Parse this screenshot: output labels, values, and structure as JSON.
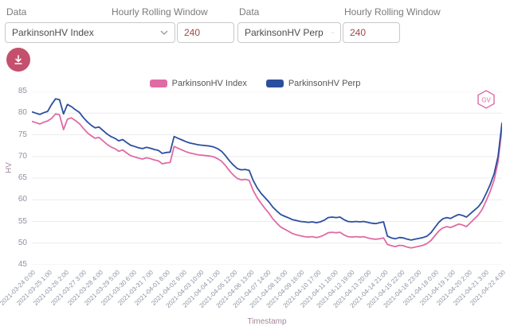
{
  "controls": {
    "group1": {
      "data_label": "Data",
      "window_label": "Hourly Rolling Window",
      "select_value": "ParkinsonHV Index",
      "window_value": "240"
    },
    "group2": {
      "data_label": "Data",
      "window_label": "Hourly Rolling Window",
      "select_value": "ParkinsonHV Perp",
      "window_value": "240"
    }
  },
  "colors": {
    "pink_series": "#df6ba4",
    "navy_series": "#2b4f9f",
    "download_button": "#c4506d",
    "badge_outline": "#df6ba4"
  },
  "badge": {
    "text": "GV"
  },
  "legend": [
    {
      "label": "ParkinsonHV Index",
      "color": "#df6ba4"
    },
    {
      "label": "ParkinsonHV Perp",
      "color": "#2b4f9f"
    }
  ],
  "chart_data": {
    "type": "line",
    "title": "",
    "xlabel": "Timestamp",
    "ylabel": "HV",
    "ylim": [
      45,
      85
    ],
    "yticks": [
      45,
      50,
      55,
      60,
      65,
      70,
      75,
      80,
      85
    ],
    "grid": true,
    "legend_position": "top-center",
    "xticklabels": [
      "2021-03-24 0:00",
      "2021-03-25 1:00",
      "2021-03-26 2:00",
      "2021-03-27 3:00",
      "2021-03-28 4:00",
      "2021-03-29 5:00",
      "2021-03-30 6:00",
      "2021-03-31 7:00",
      "2021-04-01 8:00",
      "2021-04-02 9:00",
      "2021-04-03 10:00",
      "2021-04-04 11:00",
      "2021-04-05 12:00",
      "2021-04-06 13:00",
      "2021-04-07 14:00",
      "2021-04-08 15:00",
      "2021-04-09 16:00",
      "2021-04-10 17:00",
      "2021-04-11 18:00",
      "2021-04-12 19:00",
      "2021-04-13 20:00",
      "2021-04-14 21:00",
      "2021-04-15 22:00",
      "2021-04-16 23:00",
      "2021-04-18 0:00",
      "2021-04-19 1:00",
      "2021-04-20 2:00",
      "2021-04-21 3:00",
      "2021-04-22 4:00"
    ],
    "series": [
      {
        "name": "ParkinsonHV Index",
        "color": "#df6ba4",
        "values": [
          78.1,
          77.8,
          77.5,
          77.9,
          78.2,
          78.8,
          79.8,
          79.6,
          76.2,
          78.6,
          78.9,
          78.3,
          77.6,
          76.5,
          75.5,
          74.8,
          74.2,
          74.4,
          73.6,
          72.8,
          72.2,
          71.8,
          71.2,
          71.5,
          70.8,
          70.2,
          69.9,
          69.6,
          69.4,
          69.7,
          69.5,
          69.2,
          69.0,
          68.3,
          68.5,
          68.6,
          72.3,
          71.9,
          71.5,
          71.1,
          70.8,
          70.6,
          70.4,
          70.3,
          70.2,
          70.1,
          69.9,
          69.5,
          68.9,
          67.9,
          66.7,
          65.7,
          64.9,
          64.6,
          64.7,
          64.5,
          62.2,
          60.5,
          59.2,
          58.0,
          56.9,
          55.6,
          54.6,
          53.7,
          53.2,
          52.7,
          52.2,
          51.9,
          51.7,
          51.5,
          51.4,
          51.5,
          51.3,
          51.5,
          51.9,
          52.4,
          52.5,
          52.4,
          52.5,
          51.9,
          51.5,
          51.4,
          51.5,
          51.4,
          51.5,
          51.2,
          51.0,
          50.9,
          51.0,
          51.2,
          49.7,
          49.4,
          49.2,
          49.5,
          49.4,
          49.1,
          48.9,
          49.1,
          49.3,
          49.5,
          49.9,
          50.6,
          51.7,
          52.8,
          53.5,
          53.8,
          53.6,
          54.0,
          54.4,
          54.2,
          53.8,
          54.7,
          55.6,
          56.5,
          57.8,
          59.8,
          61.9,
          64.6,
          68.8,
          76.6
        ]
      },
      {
        "name": "ParkinsonHV Perp",
        "color": "#2b4f9f",
        "values": [
          80.3,
          80.0,
          79.7,
          80.1,
          80.4,
          82.0,
          83.3,
          83.1,
          79.8,
          82.0,
          81.5,
          80.8,
          80.2,
          79.0,
          78.0,
          77.2,
          76.6,
          76.8,
          76.0,
          75.2,
          74.6,
          74.2,
          73.6,
          73.9,
          73.2,
          72.6,
          72.3,
          72.0,
          71.8,
          72.1,
          71.9,
          71.6,
          71.4,
          70.7,
          70.9,
          71.0,
          74.6,
          74.2,
          73.8,
          73.4,
          73.1,
          72.9,
          72.7,
          72.6,
          72.5,
          72.4,
          72.2,
          71.8,
          71.2,
          70.2,
          69.0,
          68.0,
          67.2,
          66.9,
          67.0,
          66.8,
          64.5,
          62.8,
          61.5,
          60.5,
          59.5,
          58.3,
          57.4,
          56.6,
          56.2,
          55.8,
          55.4,
          55.2,
          55.0,
          54.9,
          54.8,
          54.9,
          54.7,
          54.9,
          55.3,
          55.9,
          56.0,
          55.9,
          56.0,
          55.4,
          55.0,
          54.9,
          55.0,
          54.9,
          55.0,
          54.8,
          54.6,
          54.5,
          54.7,
          54.9,
          51.6,
          51.2,
          51.0,
          51.3,
          51.2,
          50.9,
          50.7,
          50.9,
          51.1,
          51.3,
          51.6,
          52.4,
          53.6,
          54.8,
          55.6,
          55.9,
          55.7,
          56.2,
          56.6,
          56.4,
          56.0,
          56.8,
          57.6,
          58.4,
          59.6,
          61.5,
          63.5,
          66.0,
          70.0,
          77.8
        ]
      }
    ]
  }
}
